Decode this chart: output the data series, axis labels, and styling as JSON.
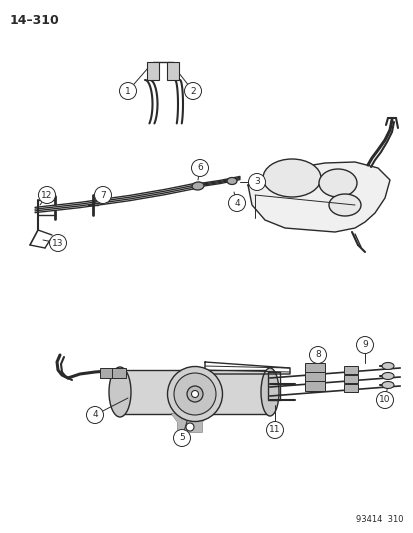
{
  "page_number": "14–310",
  "footer_code": "93414  310",
  "background_color": "#ffffff",
  "line_color": "#2a2a2a",
  "figsize": [
    4.14,
    5.33
  ],
  "dpi": 100
}
